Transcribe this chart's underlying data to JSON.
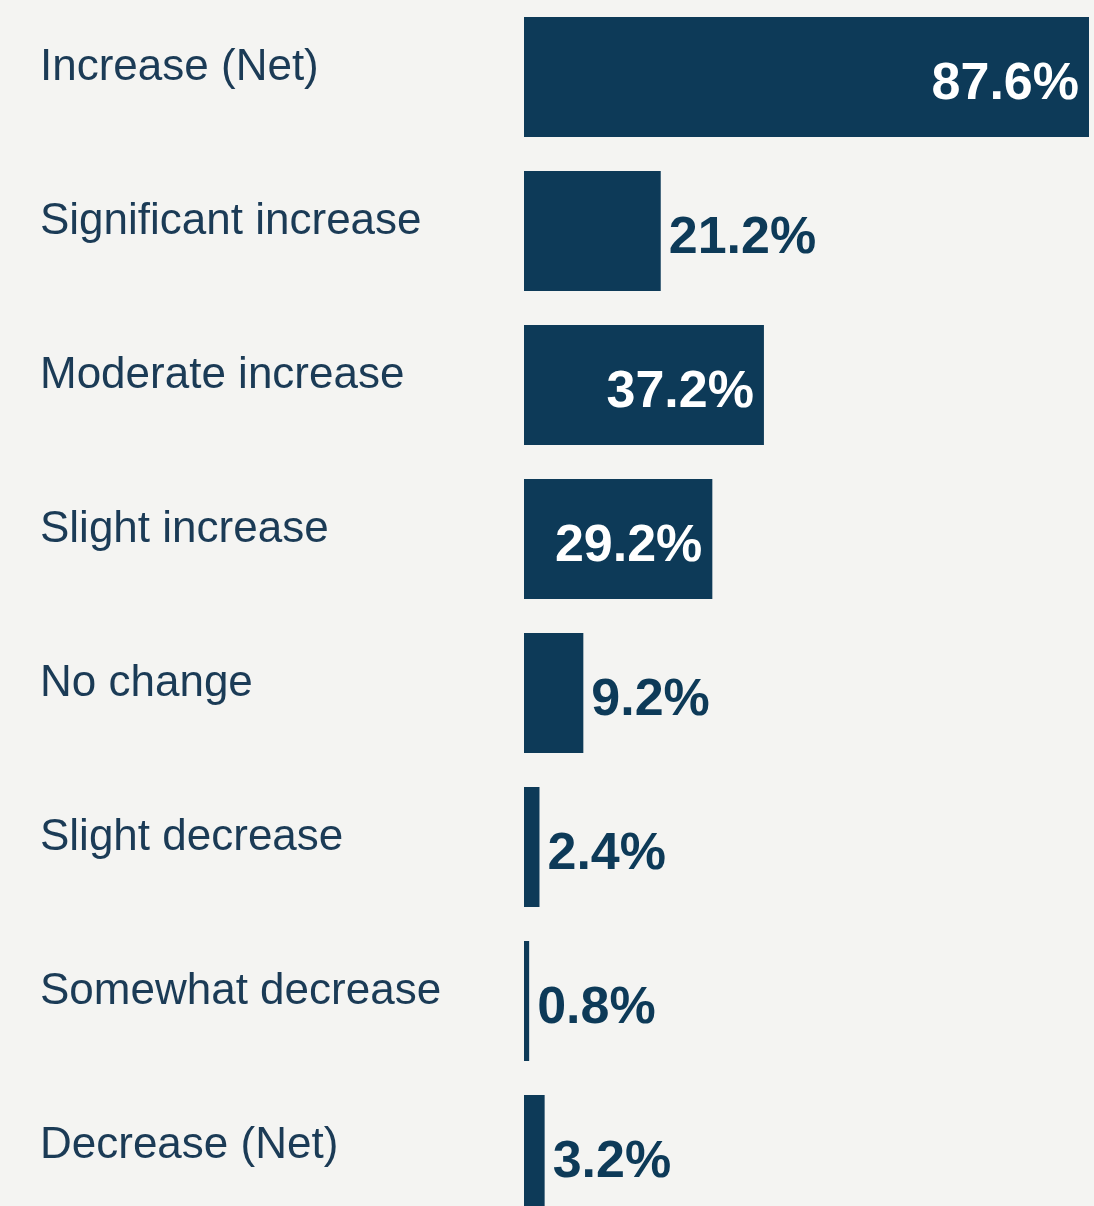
{
  "chart_data": {
    "type": "bar",
    "orientation": "horizontal",
    "categories": [
      "Increase (Net)",
      "Significant increase",
      "Moderate increase",
      "Slight increase",
      "No change",
      "Slight decrease",
      "Somewhat decrease",
      "Decrease (Net)"
    ],
    "values": [
      87.6,
      21.2,
      37.2,
      29.2,
      9.2,
      2.4,
      0.8,
      3.2
    ],
    "value_labels": [
      "87.6%",
      "21.2%",
      "37.2%",
      "29.2%",
      "9.2%",
      "2.4%",
      "0.8%",
      "3.2%"
    ],
    "color": "#0d3a58"
  }
}
